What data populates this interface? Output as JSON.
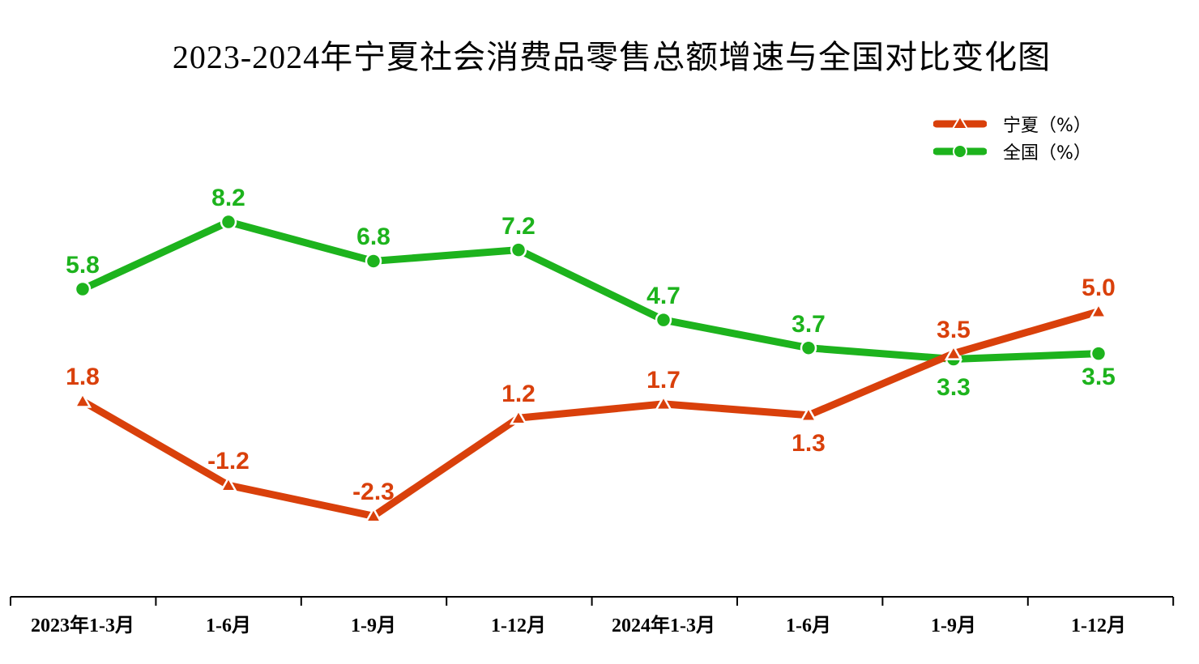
{
  "chart_data": {
    "type": "line",
    "title": "2023-2024年宁夏社会消费品零售总额增速与全国对比变化图",
    "xlabel": "",
    "ylabel": "",
    "categories": [
      "2023年1-3月",
      "1-6月",
      "1-9月",
      "1-12月",
      "2024年1-3月",
      "1-6月",
      "1-9月",
      "1-12月"
    ],
    "series": [
      {
        "name": "宁夏（%）",
        "color": "#d9400b",
        "marker": "triangle",
        "values": [
          1.8,
          -1.2,
          -2.3,
          1.2,
          1.7,
          1.3,
          3.5,
          5.0
        ]
      },
      {
        "name": "全国（%）",
        "color": "#1db31d",
        "marker": "circle",
        "values": [
          5.8,
          8.2,
          6.8,
          7.2,
          4.7,
          3.7,
          3.3,
          3.5
        ]
      }
    ],
    "legend_position": "top-right",
    "grid": false,
    "y_axis_visible": false
  },
  "labels": {
    "title": "2023-2024年宁夏社会消费品零售总额增速与全国对比变化图",
    "legend": [
      "宁夏（%）",
      "全国（%）"
    ],
    "x": [
      "2023年1-3月",
      "1-6月",
      "1-9月",
      "1-12月",
      "2024年1-3月",
      "1-6月",
      "1-9月",
      "1-12月"
    ],
    "ningxia": [
      "1.8",
      "-1.2",
      "-2.3",
      "1.2",
      "1.7",
      "1.3",
      "3.5",
      "5.0"
    ],
    "national": [
      "5.8",
      "8.2",
      "6.8",
      "7.2",
      "4.7",
      "3.7",
      "3.3",
      "3.5"
    ]
  }
}
